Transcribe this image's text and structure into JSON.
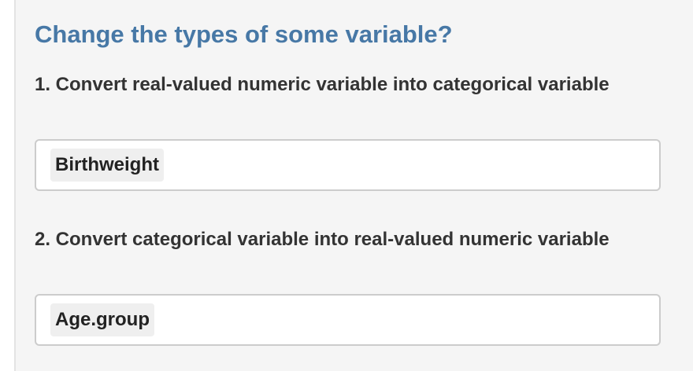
{
  "section": {
    "title": "Change the types of some variable?"
  },
  "fields": [
    {
      "label": "1. Convert real-valued numeric variable into categorical variable",
      "selected": [
        "Birthweight"
      ]
    },
    {
      "label": "2. Convert categorical variable into real-valued numeric variable",
      "selected": [
        "Age.group"
      ]
    }
  ]
}
